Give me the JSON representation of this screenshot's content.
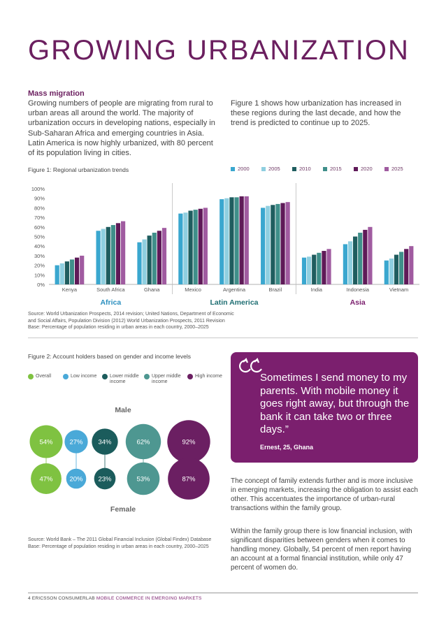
{
  "page": {
    "title": "GROWING URBANIZATION",
    "mass_migration": {
      "heading": "Mass migration",
      "body": "Growing numbers of people are migrating from rural to urban areas all around the world. The majority of urbanization occurs in developing nations, especially in Sub-Saharan Africa and emerging countries in Asia. Latin America is now highly urbanized, with 80 percent of its population living in cities."
    },
    "figure1_intro": "Figure 1 shows how urbanization has increased in these regions during the last decade, and how the trend is predicted to continue up to 2025.",
    "figure1_caption": "Figure 1: Regional urbanization trends",
    "figure1_source": [
      "Source: World Urbanization Prospects, 2014 revision; United Nations, Department of Economic",
      "and Social Affairs, Population Division (2012) World Urbanization Prospects, 2011 Revision",
      "Base: Percentage of population residing in urban areas in each country, 2000–2025"
    ],
    "figure2_caption": "Figure 2: Account holders based on gender and income levels",
    "figure2_source": [
      "Source: World Bank – The 2011 Global Financial Inclusion (Global Findex) Database",
      "Base: Percentage of population residing in urban areas in each country, 2000–2025"
    ],
    "quote": {
      "text": "Sometimes I send money to my parents. With mobile money it goes right away, but through the bank it can take two or three days.”",
      "attribution": "Ernest, 25, Ghana",
      "icon": "quote-icon"
    },
    "paragraph1": "The concept of family extends further and is more inclusive in emerging markets, increasing the obligation to assist each other. This accentuates the importance of urban-rural transactions within the family group.",
    "paragraph2": "Within the family group there is low financial inclusion, with significant disparities between genders when it comes to handling money. Globally, 54 percent of men report having an account at a formal financial institution, while only 47 percent of women do.",
    "footer": {
      "page_number": "4",
      "publisher": "ERICSSON CONSUMERLAB",
      "report": "MOBILE COMMERCE IN EMERGING MARKETS"
    },
    "colors": {
      "purple": "#6b1f5f",
      "quote_bg": "#7b1f6e"
    }
  },
  "chart_data": [
    {
      "type": "bar",
      "title": "Figure 1: Regional urbanization trends",
      "ylabel": "",
      "ylim": [
        0,
        100
      ],
      "y_ticks": [
        "0%",
        "10%",
        "20%",
        "30%",
        "40%",
        "50%",
        "60%",
        "70%",
        "80%",
        "90%",
        "100%"
      ],
      "categories": [
        "Kenya",
        "South Africa",
        "Ghana",
        "Mexico",
        "Argentina",
        "Brazil",
        "India",
        "Indonesia",
        "Vietnam"
      ],
      "groups": [
        {
          "name": "Africa",
          "categories": [
            "Kenya",
            "South Africa",
            "Ghana"
          ],
          "color": "#2a8fbf"
        },
        {
          "name": "Latin America",
          "categories": [
            "Mexico",
            "Argentina",
            "Brazil"
          ],
          "color": "#1f6f73"
        },
        {
          "name": "Asia",
          "categories": [
            "India",
            "Indonesia",
            "Vietnam"
          ],
          "color": "#7b1f6e"
        }
      ],
      "series": [
        {
          "name": "2000",
          "color": "#3aa7cf",
          "values": [
            20,
            56,
            44,
            74,
            89,
            80,
            28,
            42,
            25
          ]
        },
        {
          "name": "2005",
          "color": "#8fcfe0",
          "values": [
            22,
            58,
            47,
            75,
            90,
            82,
            29,
            45,
            27
          ]
        },
        {
          "name": "2010",
          "color": "#1f5d5f",
          "values": [
            24,
            60,
            51,
            77,
            91,
            83,
            31,
            50,
            31
          ]
        },
        {
          "name": "2015",
          "color": "#3f8f8a",
          "values": [
            26,
            62,
            54,
            78,
            91,
            84,
            33,
            54,
            34
          ]
        },
        {
          "name": "2020",
          "color": "#5f1a58",
          "values": [
            28,
            64,
            56,
            79,
            92,
            85,
            35,
            57,
            37
          ]
        },
        {
          "name": "2025",
          "color": "#a05ba0",
          "values": [
            30,
            66,
            59,
            80,
            92,
            86,
            37,
            60,
            40
          ]
        }
      ]
    },
    {
      "type": "bubble",
      "title": "Figure 2: Account holders based on gender and income levels",
      "row_labels": [
        "Male",
        "Female"
      ],
      "series": [
        {
          "name": "Overall",
          "color": "#7fc241",
          "male": 54,
          "female": 47
        },
        {
          "name": "Low income",
          "color": "#4aa9d8",
          "male": 27,
          "female": 20
        },
        {
          "name": "Lower middle income",
          "color": "#1b5c5c",
          "male": 34,
          "female": 23
        },
        {
          "name": "Upper middle income",
          "color": "#4e9791",
          "male": 62,
          "female": 53
        },
        {
          "name": "High income",
          "color": "#6b1f62",
          "male": 92,
          "female": 87
        }
      ]
    }
  ]
}
